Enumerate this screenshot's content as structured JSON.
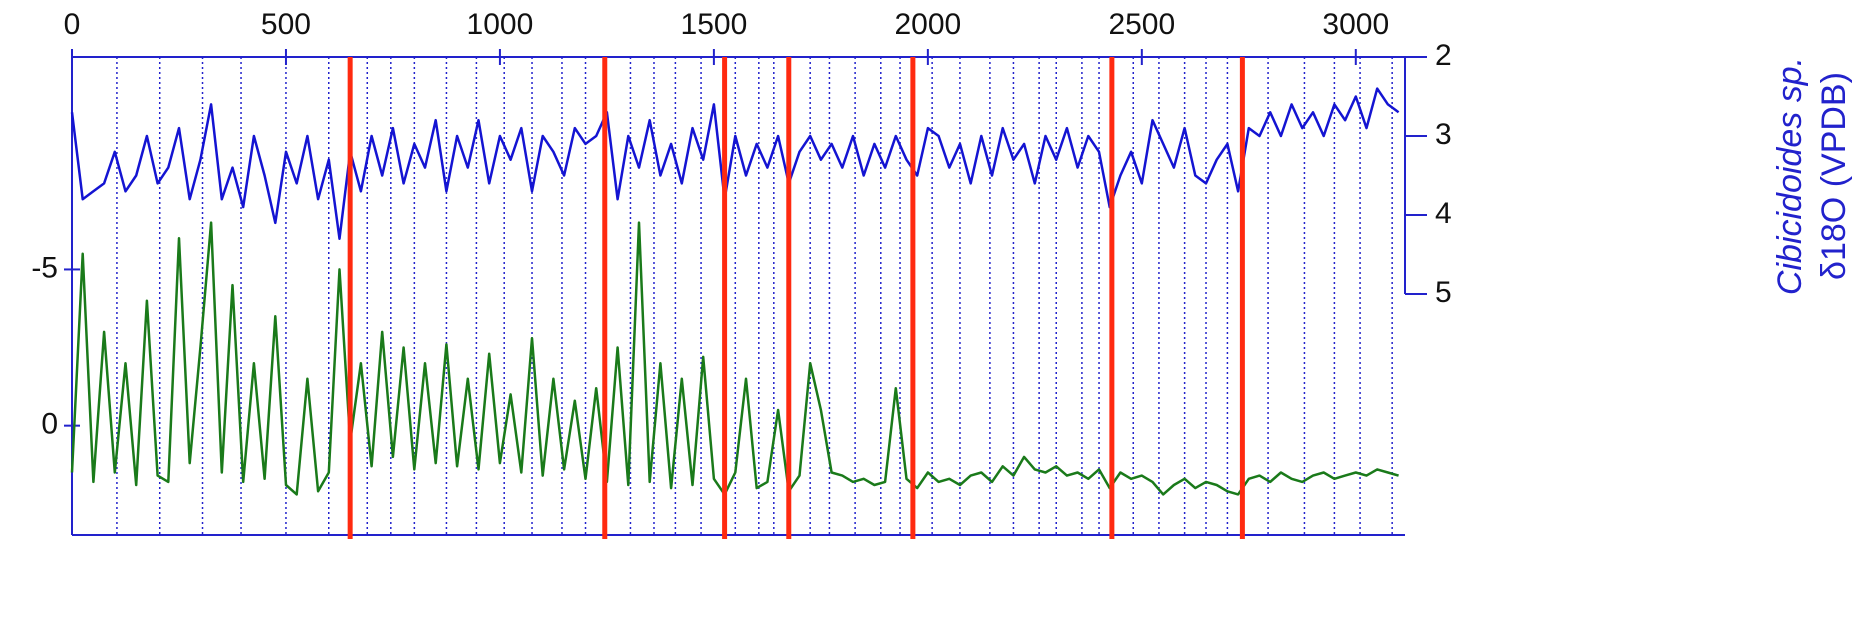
{
  "chart_data": {
    "type": "line",
    "y2label": [
      "Cibicidoides sp.",
      "δ18O (VPDB)"
    ],
    "xlim": [
      0,
      3115
    ],
    "xticks": [
      0,
      500,
      1000,
      1500,
      2000,
      2500,
      3000
    ],
    "ylim": [
      3.5,
      -11.8
    ],
    "yticks": [
      -5,
      0
    ],
    "y2lim": [
      5,
      2
    ],
    "y2ticks": [
      2,
      3,
      4,
      5
    ],
    "red_lines": [
      650,
      1245,
      1525,
      1675,
      1965,
      2430,
      2735
    ],
    "red_color": "#ff2a10",
    "dotted_lines": [
      105,
      205,
      305,
      395,
      500,
      600,
      690,
      745,
      800,
      875,
      945,
      1010,
      1075,
      1145,
      1200,
      1305,
      1360,
      1410,
      1470,
      1550,
      1605,
      1640,
      1725,
      1770,
      1830,
      1890,
      1935,
      2010,
      2075,
      2145,
      2200,
      2260,
      2300,
      2360,
      2400,
      2480,
      2540,
      2600,
      2650,
      2700,
      2795,
      2880,
      2950,
      3010,
      3085
    ],
    "axis_color": "#2222cc",
    "x": [
      0,
      25,
      50,
      75,
      100,
      125,
      150,
      175,
      200,
      225,
      250,
      275,
      300,
      325,
      350,
      375,
      400,
      425,
      450,
      475,
      500,
      525,
      550,
      575,
      600,
      625,
      650,
      675,
      700,
      725,
      750,
      775,
      800,
      825,
      850,
      875,
      900,
      925,
      950,
      975,
      1000,
      1025,
      1050,
      1075,
      1100,
      1125,
      1150,
      1175,
      1200,
      1225,
      1250,
      1275,
      1300,
      1325,
      1350,
      1375,
      1400,
      1425,
      1450,
      1475,
      1500,
      1525,
      1550,
      1575,
      1600,
      1625,
      1650,
      1675,
      1700,
      1725,
      1750,
      1775,
      1800,
      1825,
      1850,
      1875,
      1900,
      1925,
      1950,
      1975,
      2000,
      2025,
      2050,
      2075,
      2100,
      2125,
      2150,
      2175,
      2200,
      2225,
      2250,
      2275,
      2300,
      2325,
      2350,
      2375,
      2400,
      2425,
      2450,
      2475,
      2500,
      2525,
      2550,
      2575,
      2600,
      2625,
      2650,
      2675,
      2700,
      2725,
      2750,
      2775,
      2800,
      2825,
      2850,
      2875,
      2900,
      2925,
      2950,
      2975,
      3000,
      3025,
      3050,
      3075,
      3100
    ],
    "series": [
      {
        "color": "#1414d2",
        "axis": "y2",
        "values": [
          2.7,
          3.8,
          3.7,
          3.6,
          3.2,
          3.7,
          3.5,
          3.0,
          3.6,
          3.4,
          2.9,
          3.8,
          3.3,
          2.6,
          3.8,
          3.4,
          3.9,
          3.0,
          3.5,
          4.1,
          3.2,
          3.6,
          3.0,
          3.8,
          3.3,
          4.3,
          3.2,
          3.7,
          3.0,
          3.5,
          2.9,
          3.6,
          3.1,
          3.4,
          2.8,
          3.7,
          3.0,
          3.4,
          2.8,
          3.6,
          3.0,
          3.3,
          2.9,
          3.7,
          3.0,
          3.2,
          3.5,
          2.9,
          3.1,
          3.0,
          2.7,
          3.8,
          3.0,
          3.4,
          2.8,
          3.5,
          3.1,
          3.6,
          2.9,
          3.3,
          2.6,
          3.8,
          3.0,
          3.5,
          3.1,
          3.4,
          3.0,
          3.6,
          3.2,
          3.0,
          3.3,
          3.1,
          3.4,
          3.0,
          3.5,
          3.1,
          3.4,
          3.0,
          3.3,
          3.5,
          2.9,
          3.0,
          3.4,
          3.1,
          3.6,
          3.0,
          3.5,
          2.9,
          3.3,
          3.1,
          3.6,
          3.0,
          3.3,
          2.9,
          3.4,
          3.0,
          3.2,
          3.9,
          3.5,
          3.2,
          3.6,
          2.8,
          3.1,
          3.4,
          2.9,
          3.5,
          3.6,
          3.3,
          3.1,
          3.7,
          2.9,
          3.0,
          2.7,
          3.0,
          2.6,
          2.9,
          2.7,
          3.0,
          2.6,
          2.8,
          2.5,
          2.9,
          2.4,
          2.6,
          2.7
        ]
      },
      {
        "color": "#1a7a1a",
        "values": [
          1.5,
          -5.5,
          1.8,
          -3,
          1.5,
          -2,
          1.9,
          -4,
          1.6,
          1.8,
          -6,
          1.2,
          -2.5,
          -6.5,
          1.5,
          -4.5,
          1.8,
          -2,
          1.7,
          -3.5,
          1.9,
          2.2,
          -1.5,
          2.1,
          1.5,
          -5,
          0.5,
          -2,
          1.3,
          -3,
          1.0,
          -2.5,
          1.4,
          -2,
          1.2,
          -2.6,
          1.3,
          -1.5,
          1.4,
          -2.3,
          1.2,
          -1,
          1.5,
          -2.8,
          1.6,
          -1.5,
          1.4,
          -0.8,
          1.7,
          -1.2,
          1.8,
          -2.5,
          1.9,
          -6.5,
          1.8,
          -2,
          2.0,
          -1.5,
          1.9,
          -2.2,
          1.7,
          2.2,
          1.5,
          -1.5,
          2.0,
          1.8,
          -0.5,
          2.1,
          1.6,
          -2,
          -0.5,
          1.5,
          1.6,
          1.8,
          1.7,
          1.9,
          1.8,
          -1.2,
          1.7,
          2.0,
          1.5,
          1.8,
          1.7,
          1.9,
          1.6,
          1.5,
          1.8,
          1.3,
          1.6,
          1.0,
          1.4,
          1.5,
          1.3,
          1.6,
          1.5,
          1.7,
          1.4,
          2.0,
          1.5,
          1.7,
          1.6,
          1.8,
          2.2,
          1.9,
          1.7,
          2.0,
          1.8,
          1.9,
          2.1,
          2.2,
          1.7,
          1.6,
          1.8,
          1.5,
          1.7,
          1.8,
          1.6,
          1.5,
          1.7,
          1.6,
          1.5,
          1.6,
          1.4,
          1.5,
          1.6
        ]
      }
    ]
  }
}
